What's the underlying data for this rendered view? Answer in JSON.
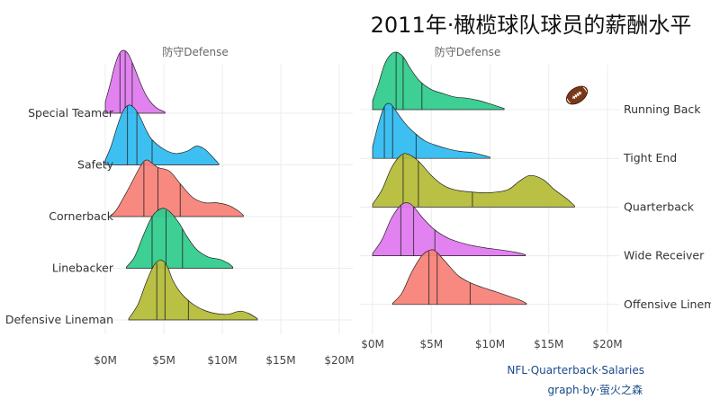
{
  "title": "2011年·橄榄球队球员的薪酬水平",
  "captions": [
    "NFL·Quarterback·Salaries",
    "graph·by·萤火之森"
  ],
  "icon": "football-icon",
  "chart_data": [
    {
      "type": "ridgeline",
      "strip_label": "防守Defense",
      "xlim": [
        0,
        20
      ],
      "x_ticks": [
        0,
        5,
        10,
        15,
        20
      ],
      "x_tick_labels": [
        "$0M",
        "$5M",
        "$10M",
        "$15M",
        "$20M"
      ],
      "grid": true,
      "label_side": "left",
      "series": [
        {
          "name": "Special Teamer",
          "color": "#E07BF0",
          "range": [
            0,
            5.1
          ],
          "quartiles": [
            1.25,
            1.7,
            2.3
          ],
          "density": [
            [
              0,
              0.18
            ],
            [
              0.4,
              0.45
            ],
            [
              0.8,
              0.75
            ],
            [
              1.2,
              0.95
            ],
            [
              1.6,
              1.0
            ],
            [
              2.0,
              0.93
            ],
            [
              2.5,
              0.72
            ],
            [
              3.0,
              0.48
            ],
            [
              3.5,
              0.28
            ],
            [
              4.0,
              0.15
            ],
            [
              4.5,
              0.07
            ],
            [
              5.1,
              0.02
            ]
          ]
        },
        {
          "name": "Safety",
          "color": "#33BDF0",
          "range": [
            0,
            9.7
          ],
          "quartiles": [
            1.9,
            2.7,
            4.0
          ],
          "density": [
            [
              0,
              0.08
            ],
            [
              0.5,
              0.3
            ],
            [
              1.0,
              0.6
            ],
            [
              1.5,
              0.85
            ],
            [
              2.0,
              0.95
            ],
            [
              2.5,
              0.9
            ],
            [
              3.0,
              0.75
            ],
            [
              3.5,
              0.55
            ],
            [
              4.0,
              0.4
            ],
            [
              5.0,
              0.25
            ],
            [
              6.0,
              0.18
            ],
            [
              7.0,
              0.22
            ],
            [
              7.8,
              0.3
            ],
            [
              8.5,
              0.25
            ],
            [
              9.2,
              0.12
            ],
            [
              9.7,
              0.02
            ]
          ]
        },
        {
          "name": "Cornerback",
          "color": "#F8837A",
          "range": [
            0.5,
            11.8
          ],
          "quartiles": [
            3.3,
            4.5,
            6.4
          ],
          "density": [
            [
              0.5,
              0.02
            ],
            [
              1.0,
              0.12
            ],
            [
              2.0,
              0.45
            ],
            [
              3.0,
              0.8
            ],
            [
              3.5,
              0.9
            ],
            [
              4.0,
              0.85
            ],
            [
              4.5,
              0.78
            ],
            [
              5.5,
              0.72
            ],
            [
              6.5,
              0.5
            ],
            [
              7.5,
              0.3
            ],
            [
              8.5,
              0.22
            ],
            [
              9.5,
              0.22
            ],
            [
              10.5,
              0.18
            ],
            [
              11.3,
              0.1
            ],
            [
              11.8,
              0.02
            ]
          ]
        },
        {
          "name": "Linebacker",
          "color": "#33CC8E",
          "range": [
            1.8,
            10.9
          ],
          "quartiles": [
            4.0,
            5.2,
            6.6
          ],
          "density": [
            [
              1.8,
              0.02
            ],
            [
              2.5,
              0.18
            ],
            [
              3.2,
              0.5
            ],
            [
              4.0,
              0.82
            ],
            [
              4.8,
              0.95
            ],
            [
              5.5,
              0.9
            ],
            [
              6.3,
              0.72
            ],
            [
              7.0,
              0.5
            ],
            [
              7.8,
              0.3
            ],
            [
              8.8,
              0.18
            ],
            [
              9.8,
              0.14
            ],
            [
              10.5,
              0.08
            ],
            [
              10.9,
              0.02
            ]
          ]
        },
        {
          "name": "Defensive Lineman",
          "color": "#B5BD3A",
          "range": [
            2.0,
            13.0
          ],
          "quartiles": [
            4.4,
            5.1,
            7.1
          ],
          "density": [
            [
              2.0,
              0.02
            ],
            [
              2.8,
              0.25
            ],
            [
              3.5,
              0.6
            ],
            [
              4.2,
              0.88
            ],
            [
              4.8,
              0.95
            ],
            [
              5.3,
              0.85
            ],
            [
              5.8,
              0.62
            ],
            [
              6.5,
              0.42
            ],
            [
              7.5,
              0.25
            ],
            [
              8.5,
              0.15
            ],
            [
              9.5,
              0.1
            ],
            [
              10.5,
              0.09
            ],
            [
              11.5,
              0.14
            ],
            [
              12.3,
              0.1
            ],
            [
              13.0,
              0.02
            ]
          ]
        }
      ]
    },
    {
      "type": "ridgeline",
      "strip_label": "防守Defense",
      "xlim": [
        0,
        20
      ],
      "x_ticks": [
        0,
        5,
        10,
        15,
        20
      ],
      "x_tick_labels": [
        "$0M",
        "$5M",
        "$10M",
        "$15M",
        "$20M"
      ],
      "grid": true,
      "label_side": "right",
      "series": [
        {
          "name": "Running Back",
          "color": "#33CC8E",
          "range": [
            0,
            11.2
          ],
          "quartiles": [
            2.0,
            2.6,
            4.2
          ],
          "density": [
            [
              0,
              0.15
            ],
            [
              0.5,
              0.45
            ],
            [
              1.0,
              0.78
            ],
            [
              1.5,
              0.95
            ],
            [
              2.0,
              1.0
            ],
            [
              2.6,
              0.92
            ],
            [
              3.2,
              0.72
            ],
            [
              4.0,
              0.5
            ],
            [
              5.0,
              0.35
            ],
            [
              6.0,
              0.28
            ],
            [
              7.0,
              0.22
            ],
            [
              8.0,
              0.2
            ],
            [
              9.0,
              0.16
            ],
            [
              10.0,
              0.1
            ],
            [
              11.2,
              0.02
            ]
          ]
        },
        {
          "name": "Tight End",
          "color": "#33BDF0",
          "range": [
            0,
            10.0
          ],
          "quartiles": [
            1.0,
            1.7,
            3.7
          ],
          "density": [
            [
              0,
              0.2
            ],
            [
              0.5,
              0.6
            ],
            [
              1.0,
              0.9
            ],
            [
              1.5,
              0.95
            ],
            [
              2.0,
              0.82
            ],
            [
              2.8,
              0.6
            ],
            [
              3.7,
              0.42
            ],
            [
              4.5,
              0.3
            ],
            [
              5.5,
              0.22
            ],
            [
              6.5,
              0.16
            ],
            [
              7.5,
              0.12
            ],
            [
              8.5,
              0.1
            ],
            [
              9.3,
              0.06
            ],
            [
              10.0,
              0.02
            ]
          ]
        },
        {
          "name": "Quarterback",
          "color": "#B5BD3A",
          "range": [
            0,
            17.2
          ],
          "quartiles": [
            2.6,
            3.9,
            8.5
          ],
          "density": [
            [
              0,
              0.05
            ],
            [
              0.8,
              0.3
            ],
            [
              1.6,
              0.68
            ],
            [
              2.4,
              0.9
            ],
            [
              3.0,
              0.92
            ],
            [
              3.9,
              0.8
            ],
            [
              5.0,
              0.55
            ],
            [
              6.0,
              0.38
            ],
            [
              7.0,
              0.3
            ],
            [
              8.5,
              0.26
            ],
            [
              10.0,
              0.25
            ],
            [
              11.5,
              0.3
            ],
            [
              12.5,
              0.45
            ],
            [
              13.4,
              0.55
            ],
            [
              14.5,
              0.48
            ],
            [
              15.5,
              0.3
            ],
            [
              16.5,
              0.15
            ],
            [
              17.2,
              0.02
            ]
          ]
        },
        {
          "name": "Wide Receiver",
          "color": "#E07BF0",
          "range": [
            0,
            13.0
          ],
          "quartiles": [
            2.4,
            3.5,
            5.3
          ],
          "density": [
            [
              0,
              0.04
            ],
            [
              0.8,
              0.28
            ],
            [
              1.6,
              0.65
            ],
            [
              2.4,
              0.88
            ],
            [
              3.0,
              0.92
            ],
            [
              3.5,
              0.85
            ],
            [
              4.3,
              0.65
            ],
            [
              5.3,
              0.45
            ],
            [
              6.5,
              0.3
            ],
            [
              8.0,
              0.2
            ],
            [
              9.5,
              0.14
            ],
            [
              11.0,
              0.1
            ],
            [
              12.2,
              0.06
            ],
            [
              13.0,
              0.02
            ]
          ]
        },
        {
          "name": "Offensive Lineman",
          "color": "#F8837A",
          "range": [
            1.7,
            13.1
          ],
          "quartiles": [
            4.8,
            5.5,
            8.3
          ],
          "density": [
            [
              1.7,
              0.02
            ],
            [
              2.5,
              0.2
            ],
            [
              3.3,
              0.55
            ],
            [
              4.2,
              0.85
            ],
            [
              5.0,
              0.95
            ],
            [
              5.5,
              0.9
            ],
            [
              6.3,
              0.72
            ],
            [
              7.3,
              0.5
            ],
            [
              8.3,
              0.38
            ],
            [
              9.3,
              0.3
            ],
            [
              10.5,
              0.22
            ],
            [
              11.5,
              0.15
            ],
            [
              12.5,
              0.08
            ],
            [
              13.1,
              0.02
            ]
          ]
        }
      ]
    }
  ]
}
